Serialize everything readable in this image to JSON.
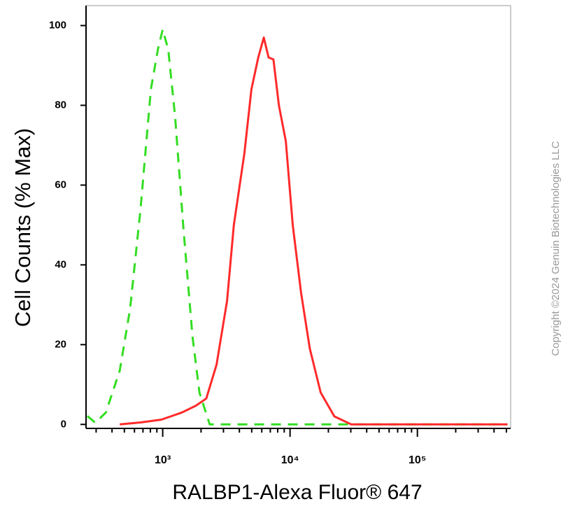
{
  "chart_data": {
    "type": "line",
    "y_label": "Cell Counts (% Max)",
    "x_label": "RALBP1-Alexa Fluor® 647",
    "copyright": "Copyright ©2024 Genuin Biotechnologies LLC",
    "log_x": true,
    "xlim": [
      250,
      540000
    ],
    "ylim": [
      -1,
      105
    ],
    "xticks": [
      {
        "value": 1000,
        "label": "10³"
      },
      {
        "value": 10000,
        "label": "10⁴"
      },
      {
        "value": 100000,
        "label": "10⁵"
      }
    ],
    "yticks": [
      0,
      20,
      40,
      60,
      80,
      100
    ],
    "series": [
      {
        "color": "#33dd22",
        "dashed": true,
        "x": [
          256,
          296,
          358,
          460,
          555,
          670,
          808,
          916,
          1000,
          1105,
          1253,
          1456,
          1713,
          1942,
          2340,
          3010,
          8170,
          510000
        ],
        "values": [
          2.1,
          0.4,
          3,
          13.5,
          29,
          54,
          84,
          94,
          99,
          94,
          77,
          49,
          22,
          8,
          0,
          0,
          0,
          0
        ]
      },
      {
        "color": "#ff2a2a",
        "dashed": false,
        "x": [
          460,
          670,
          975,
          1420,
          1823,
          2200,
          2650,
          3200,
          3620,
          4380,
          4970,
          5630,
          6220,
          6790,
          7410,
          8170,
          9270,
          10500,
          12200,
          14300,
          17400,
          22300,
          30300,
          510000
        ],
        "values": [
          0,
          0.5,
          1.2,
          3,
          4.7,
          6.5,
          15,
          31,
          50,
          68,
          84,
          92,
          97,
          92,
          91.5,
          80,
          71,
          50,
          33,
          19,
          8,
          2,
          0,
          0
        ]
      }
    ]
  }
}
